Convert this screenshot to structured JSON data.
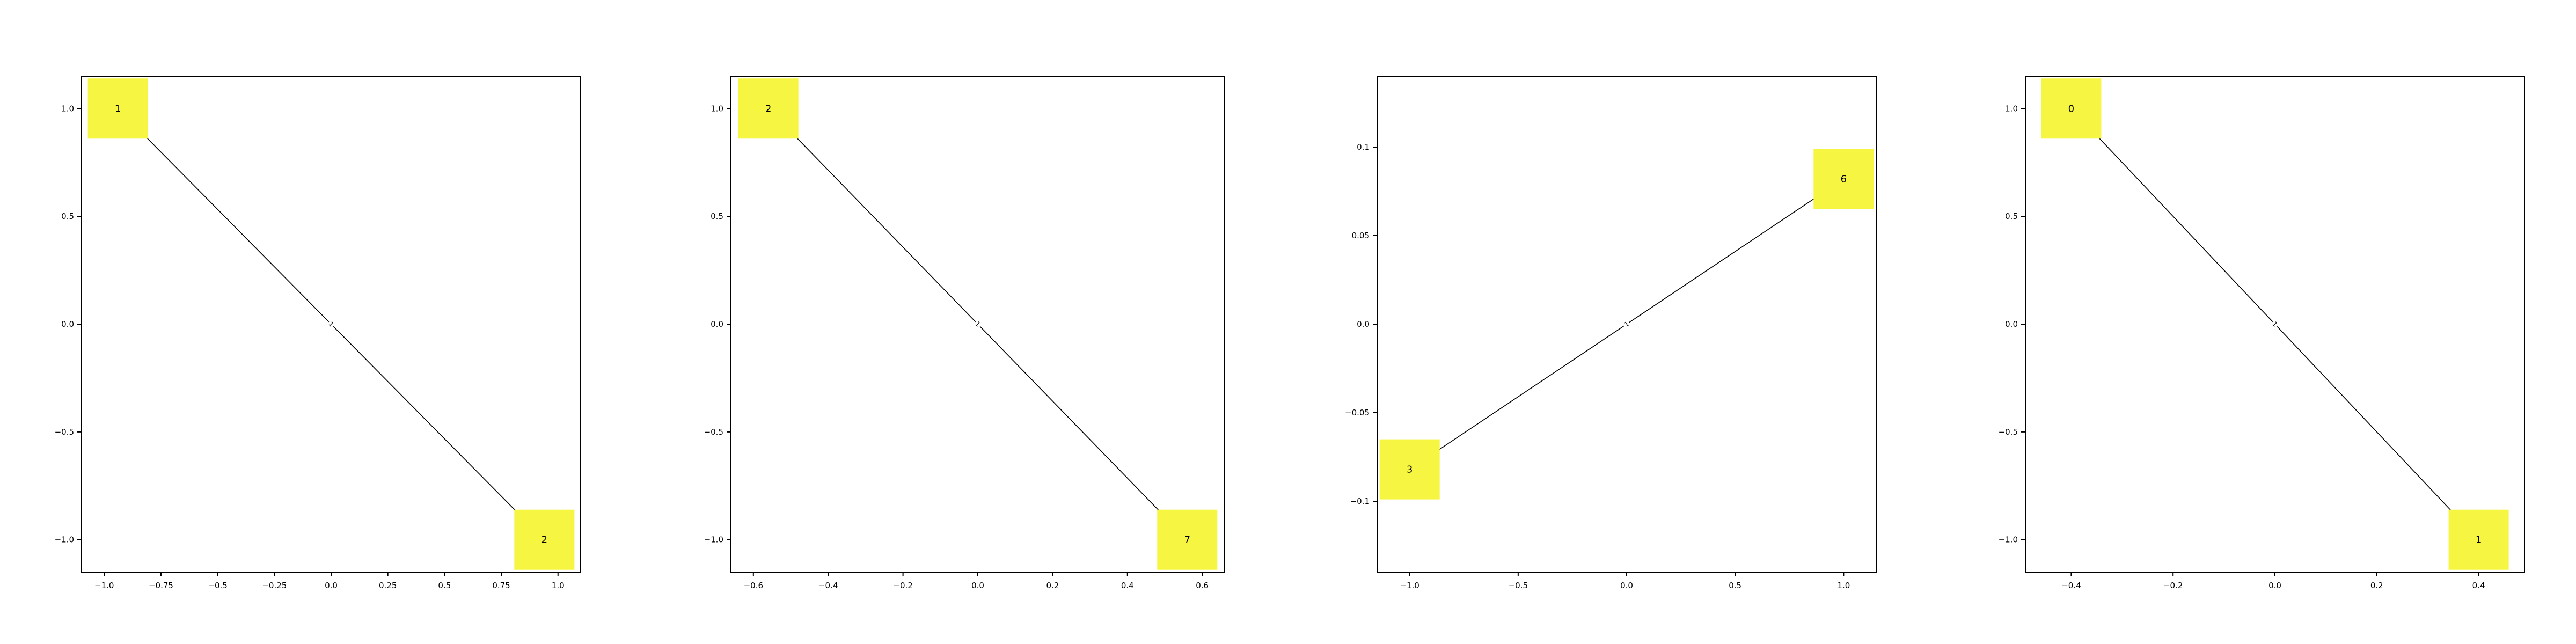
{
  "chart_data": [
    {
      "type": "network",
      "xlim": [
        -1.1,
        1.1
      ],
      "ylim": [
        -1.15,
        1.15
      ],
      "xticks": [
        -1.0,
        -0.75,
        -0.5,
        -0.25,
        0.0,
        0.25,
        0.5,
        0.75,
        1.0
      ],
      "yticks": [
        -1.0,
        -0.5,
        0.0,
        0.5,
        1.0
      ],
      "node_color": "#f5f542",
      "nodes": [
        {
          "label": "1",
          "x": -0.94,
          "y": 1.0
        },
        {
          "label": "2",
          "x": 0.94,
          "y": -1.0
        }
      ],
      "edges": [
        {
          "source": 0,
          "target": 1,
          "label": "1"
        }
      ]
    },
    {
      "type": "network",
      "xlim": [
        -0.66,
        0.66
      ],
      "ylim": [
        -1.15,
        1.15
      ],
      "xticks": [
        -0.6,
        -0.4,
        -0.2,
        0.0,
        0.2,
        0.4,
        0.6
      ],
      "yticks": [
        -1.0,
        -0.5,
        0.0,
        0.5,
        1.0
      ],
      "node_color": "#f5f542",
      "nodes": [
        {
          "label": "2",
          "x": -0.56,
          "y": 1.0
        },
        {
          "label": "7",
          "x": 0.56,
          "y": -1.0
        }
      ],
      "edges": [
        {
          "source": 0,
          "target": 1,
          "label": "1"
        }
      ]
    },
    {
      "type": "network",
      "xlim": [
        -1.15,
        1.15
      ],
      "ylim": [
        -0.14,
        0.14
      ],
      "xticks": [
        -1.0,
        -0.5,
        0.0,
        0.5,
        1.0
      ],
      "yticks": [
        -0.1,
        -0.05,
        0.0,
        0.05,
        0.1
      ],
      "node_color": "#f5f542",
      "nodes": [
        {
          "label": "3",
          "x": -1.0,
          "y": -0.082
        },
        {
          "label": "6",
          "x": 1.0,
          "y": 0.082
        }
      ],
      "edges": [
        {
          "source": 0,
          "target": 1,
          "label": "1"
        }
      ]
    },
    {
      "type": "network",
      "xlim": [
        -0.49,
        0.49
      ],
      "ylim": [
        -1.15,
        1.15
      ],
      "xticks": [
        -0.4,
        -0.2,
        0.0,
        0.2,
        0.4
      ],
      "yticks": [
        -1.0,
        -0.5,
        0.0,
        0.5,
        1.0
      ],
      "node_color": "#f5f542",
      "nodes": [
        {
          "label": "0",
          "x": -0.4,
          "y": 1.0
        },
        {
          "label": "1",
          "x": 0.4,
          "y": -1.0
        }
      ],
      "edges": [
        {
          "source": 0,
          "target": 1,
          "label": "1"
        }
      ]
    }
  ]
}
